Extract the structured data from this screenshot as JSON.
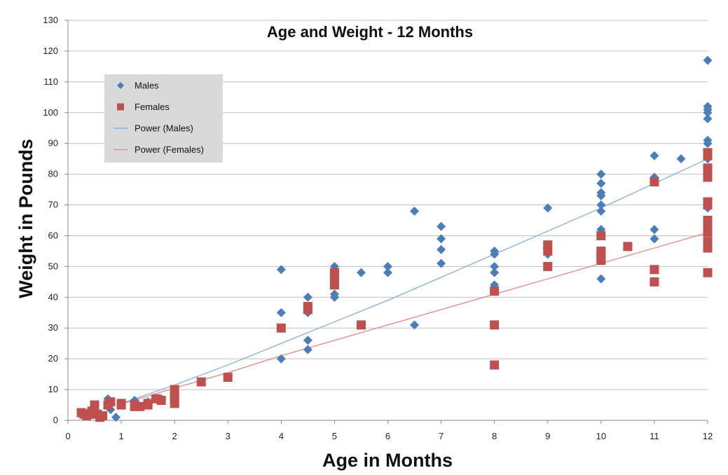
{
  "chart_data": {
    "type": "scatter",
    "title": "Age and Weight - 12 Months",
    "xlabel": "Age in Months",
    "ylabel": "Weight in Pounds",
    "xlim": [
      0,
      12
    ],
    "ylim": [
      0,
      130
    ],
    "x_ticks": [
      0,
      1,
      2,
      3,
      4,
      5,
      6,
      7,
      8,
      9,
      10,
      11,
      12
    ],
    "y_ticks": [
      0,
      10,
      20,
      30,
      40,
      50,
      60,
      70,
      80,
      90,
      100,
      110,
      120,
      130
    ],
    "grid": "horizontal",
    "legend_position": "top-left",
    "series": [
      {
        "name": "Males",
        "marker": "diamond",
        "color": "#4a7ebb",
        "points": [
          [
            0.3,
            2
          ],
          [
            0.4,
            3
          ],
          [
            0.5,
            3
          ],
          [
            0.75,
            7
          ],
          [
            0.8,
            3.5
          ],
          [
            0.9,
            1
          ],
          [
            1,
            5
          ],
          [
            1.25,
            6.5
          ],
          [
            1.5,
            6
          ],
          [
            1.75,
            7
          ],
          [
            2,
            9
          ],
          [
            4,
            49
          ],
          [
            4,
            35
          ],
          [
            4,
            20
          ],
          [
            4.5,
            40
          ],
          [
            4.5,
            35
          ],
          [
            4.5,
            26
          ],
          [
            4.5,
            23
          ],
          [
            5,
            50
          ],
          [
            5,
            41
          ],
          [
            5,
            40
          ],
          [
            5.5,
            48
          ],
          [
            6,
            50
          ],
          [
            6,
            48
          ],
          [
            6.5,
            68
          ],
          [
            6.5,
            31
          ],
          [
            7,
            63
          ],
          [
            7,
            59
          ],
          [
            7,
            55.5
          ],
          [
            7,
            51
          ],
          [
            8,
            55
          ],
          [
            8,
            54
          ],
          [
            8,
            50
          ],
          [
            8,
            48
          ],
          [
            8,
            44
          ],
          [
            9,
            69
          ],
          [
            9,
            54
          ],
          [
            10,
            80
          ],
          [
            10,
            77
          ],
          [
            10,
            74
          ],
          [
            10,
            73
          ],
          [
            10,
            70
          ],
          [
            10,
            68
          ],
          [
            10,
            62
          ],
          [
            10,
            60
          ],
          [
            10,
            46
          ],
          [
            11,
            86
          ],
          [
            11,
            79
          ],
          [
            11,
            62
          ],
          [
            11,
            59
          ],
          [
            11.5,
            85
          ],
          [
            12,
            117
          ],
          [
            12,
            102
          ],
          [
            12,
            101
          ],
          [
            12,
            100
          ],
          [
            12,
            98
          ],
          [
            12,
            91
          ],
          [
            12,
            90
          ],
          [
            12,
            85
          ],
          [
            12,
            80
          ],
          [
            12,
            69
          ]
        ]
      },
      {
        "name": "Females",
        "marker": "square",
        "color": "#c0504d",
        "points": [
          [
            0.25,
            2.5
          ],
          [
            0.3,
            2
          ],
          [
            0.35,
            1.5
          ],
          [
            0.4,
            2
          ],
          [
            0.45,
            3
          ],
          [
            0.5,
            5
          ],
          [
            0.55,
            2
          ],
          [
            0.6,
            1
          ],
          [
            0.65,
            1.5
          ],
          [
            0.75,
            5
          ],
          [
            0.8,
            6
          ],
          [
            1,
            5.5
          ],
          [
            1,
            5
          ],
          [
            1.25,
            5
          ],
          [
            1.25,
            4.5
          ],
          [
            1.35,
            4.5
          ],
          [
            1.5,
            5
          ],
          [
            1.5,
            5.5
          ],
          [
            1.65,
            7
          ],
          [
            1.75,
            6.5
          ],
          [
            2,
            10
          ],
          [
            2,
            8
          ],
          [
            2,
            7
          ],
          [
            2,
            5.5
          ],
          [
            2.5,
            12.5
          ],
          [
            3,
            14
          ],
          [
            4,
            30
          ],
          [
            4.5,
            37
          ],
          [
            4.5,
            36
          ],
          [
            5,
            48
          ],
          [
            5,
            47
          ],
          [
            5,
            46
          ],
          [
            5,
            44
          ],
          [
            5.5,
            31
          ],
          [
            8,
            42
          ],
          [
            8,
            31
          ],
          [
            8,
            18
          ],
          [
            9,
            57
          ],
          [
            9,
            55
          ],
          [
            9,
            50
          ],
          [
            10,
            60
          ],
          [
            10,
            55
          ],
          [
            10,
            54
          ],
          [
            10,
            53
          ],
          [
            10,
            52
          ],
          [
            10.5,
            56.5
          ],
          [
            11,
            77.5
          ],
          [
            11,
            49
          ],
          [
            11,
            45
          ],
          [
            12,
            87
          ],
          [
            12,
            86
          ],
          [
            12,
            82
          ],
          [
            12,
            80
          ],
          [
            12,
            79
          ],
          [
            12,
            71
          ],
          [
            12,
            70
          ],
          [
            12,
            65
          ],
          [
            12,
            63
          ],
          [
            12,
            61
          ],
          [
            12,
            58
          ],
          [
            12,
            57
          ],
          [
            12,
            56
          ],
          [
            12,
            48
          ]
        ]
      },
      {
        "name": "Power (Males)",
        "kind": "trendline",
        "color": "#8db3e2",
        "points": [
          [
            1,
            5.5
          ],
          [
            2,
            11.5
          ],
          [
            3,
            18
          ],
          [
            4,
            25
          ],
          [
            5,
            32
          ],
          [
            6,
            39
          ],
          [
            7,
            46.5
          ],
          [
            8,
            54
          ],
          [
            9,
            61.5
          ],
          [
            10,
            69
          ],
          [
            11,
            77
          ],
          [
            12,
            85
          ]
        ]
      },
      {
        "name": "Power (Females)",
        "kind": "trendline",
        "color": "#e6908c",
        "points": [
          [
            1,
            5.3
          ],
          [
            2,
            10.5
          ],
          [
            3,
            15.5
          ],
          [
            4,
            21
          ],
          [
            5,
            26
          ],
          [
            6,
            31
          ],
          [
            7,
            36
          ],
          [
            8,
            41
          ],
          [
            9,
            46
          ],
          [
            10,
            51
          ],
          [
            11,
            56
          ],
          [
            12,
            61
          ]
        ]
      }
    ]
  }
}
